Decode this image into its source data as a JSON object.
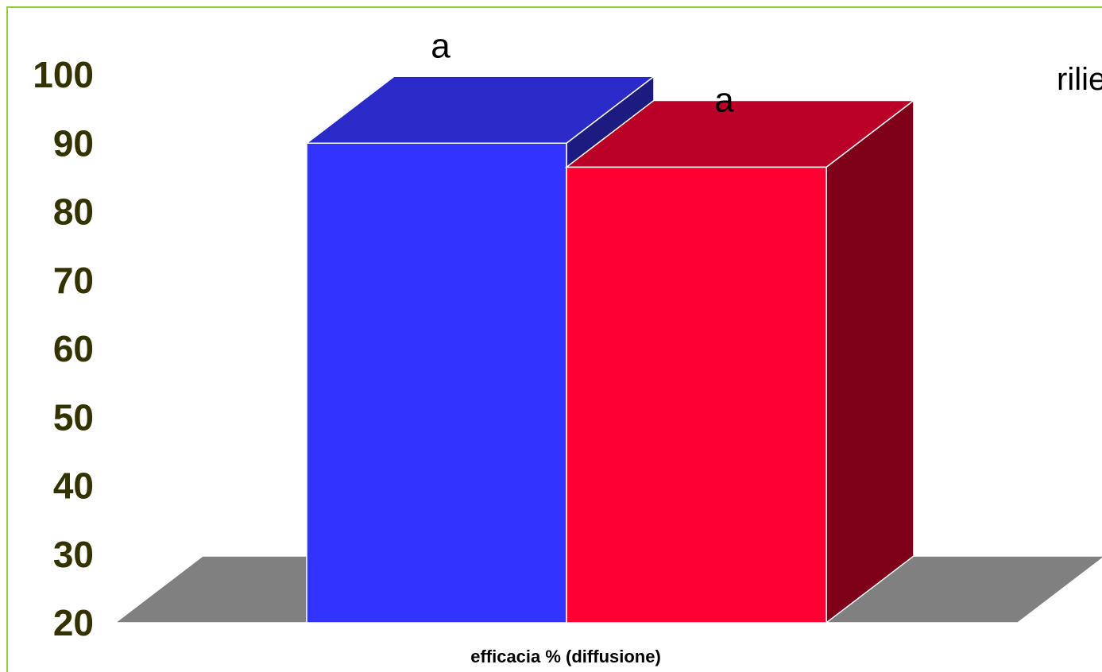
{
  "chart_data": {
    "type": "bar",
    "xlabel": "efficacia % (diffusione)",
    "ylabel": "",
    "ylim": [
      20,
      100
    ],
    "yticks": [
      100,
      90,
      80,
      70,
      60,
      50,
      40,
      30,
      20
    ],
    "series": [
      {
        "values": [
          90
        ],
        "data_label": "a",
        "color_front": "#3333ff",
        "color_top": "#2a2ac8",
        "color_side": "#1c1c80"
      },
      {
        "values": [
          86.5
        ],
        "data_label": "a",
        "color_front": "#ff0033",
        "color_top": "#bb0028",
        "color_side": "#7e0019"
      }
    ],
    "legend_fragment": "rilie",
    "colors": {
      "frame": "#99cc33",
      "tick_text": "#333300",
      "floor": "#808080"
    }
  }
}
